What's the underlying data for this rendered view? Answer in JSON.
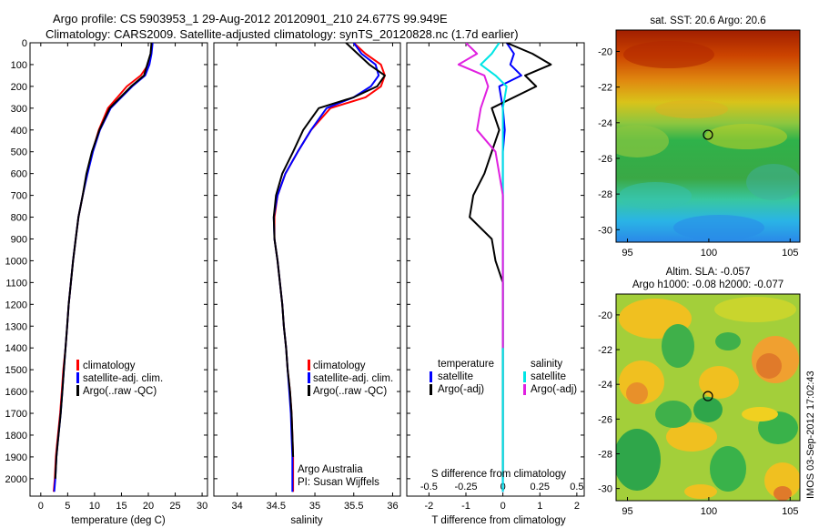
{
  "title_line1": "Argo profile: CS 5903953_1 29-Aug-2012 20120901_210 24.677S 99.949E",
  "title_line2": "Climatology: CARS2009. Satellite-adjusted climatology: synTS_20120828.nc (1.7d earlier)",
  "side_stamp": "IMOS 03-Sep-2012 17:02:43",
  "colors": {
    "red": "#ff0000",
    "blue": "#0000ff",
    "black": "#000000",
    "cyan": "#00e5e5",
    "magenta": "#e020e0"
  },
  "chart_data": [
    {
      "type": "line",
      "panel": "temperature",
      "xlabel": "temperature (deg C)",
      "ylabel": "",
      "xlim": [
        -2,
        31
      ],
      "ylim": [
        2080,
        0
      ],
      "xticks": [
        "0",
        "5",
        "10",
        "15",
        "20",
        "25",
        "30"
      ],
      "yticks": [
        "0",
        "100",
        "200",
        "300",
        "400",
        "500",
        "600",
        "700",
        "800",
        "900",
        "1000",
        "1100",
        "1200",
        "1300",
        "1400",
        "1500",
        "1600",
        "1700",
        "1800",
        "1900",
        "2000"
      ],
      "legend": [
        "climatology",
        "satellite-adj. clim.",
        "Argo(..raw -QC)"
      ],
      "series": [
        {
          "name": "climatology",
          "color": "red",
          "x": [
            20.7,
            20.5,
            20.0,
            18.6,
            16.0,
            12.5,
            10.8,
            9.6,
            8.6,
            7.8,
            7.0,
            6.5,
            6.0,
            5.6,
            5.2,
            4.9,
            4.6,
            4.2,
            3.9,
            3.6,
            3.4,
            3.2,
            3.0,
            2.8,
            2.7,
            2.6,
            2.5,
            2.4
          ],
          "y": [
            0,
            50,
            100,
            150,
            200,
            300,
            400,
            500,
            600,
            700,
            800,
            900,
            1000,
            1100,
            1200,
            1300,
            1400,
            1500,
            1600,
            1700,
            1750,
            1800,
            1850,
            1900,
            1950,
            2000,
            2030,
            2060
          ]
        },
        {
          "name": "satellite-adj. clim.",
          "color": "blue",
          "x": [
            20.8,
            20.6,
            20.2,
            19.4,
            17.0,
            13.0,
            11.0,
            9.7,
            8.7,
            7.8,
            7.0,
            6.5,
            6.0,
            5.6,
            5.2,
            4.9,
            4.6,
            4.3,
            4.0,
            3.7,
            3.5,
            3.3,
            3.1,
            2.9,
            2.8,
            2.7,
            2.6,
            2.5
          ],
          "y": [
            0,
            50,
            100,
            150,
            200,
            300,
            400,
            500,
            600,
            700,
            800,
            900,
            1000,
            1100,
            1200,
            1300,
            1400,
            1500,
            1600,
            1700,
            1750,
            1800,
            1850,
            1900,
            1950,
            2000,
            2030,
            2060
          ]
        },
        {
          "name": "Argo(..raw -QC)",
          "color": "black",
          "x": [
            20.6,
            20.4,
            19.8,
            19.2,
            16.8,
            12.8,
            10.9,
            9.5,
            8.5,
            7.8,
            7.0,
            6.5,
            6.0,
            5.6,
            5.2,
            4.9,
            4.6,
            4.3,
            4.0,
            3.7,
            3.5,
            3.3,
            3.1,
            2.9,
            2.8,
            2.7
          ],
          "y": [
            0,
            50,
            100,
            150,
            200,
            300,
            400,
            500,
            600,
            700,
            800,
            900,
            1000,
            1100,
            1200,
            1300,
            1400,
            1500,
            1600,
            1700,
            1750,
            1800,
            1850,
            1900,
            1950,
            2000
          ]
        }
      ]
    },
    {
      "type": "line",
      "panel": "salinity",
      "xlabel": "salinity",
      "ylabel": "",
      "xlim": [
        33.7,
        36.1
      ],
      "ylim": [
        2080,
        0
      ],
      "xticks": [
        "34",
        "34.5",
        "35",
        "35.5",
        "36"
      ],
      "annotation": [
        "Argo Australia",
        "PI: Susan Wijffels"
      ],
      "legend": [
        "climatology",
        "satellite-adj. clim.",
        "Argo(..raw -QC)"
      ],
      "series": [
        {
          "name": "climatology",
          "color": "red",
          "x": [
            35.5,
            35.65,
            35.85,
            35.9,
            35.85,
            35.65,
            35.2,
            34.95,
            34.78,
            34.62,
            34.52,
            34.48,
            34.48,
            34.52,
            34.55,
            34.58,
            34.6,
            34.63,
            34.65,
            34.68,
            34.7,
            34.71,
            34.72,
            34.72
          ],
          "y": [
            0,
            50,
            100,
            150,
            200,
            250,
            300,
            400,
            500,
            600,
            700,
            800,
            900,
            1000,
            1100,
            1200,
            1300,
            1400,
            1500,
            1600,
            1700,
            1800,
            1900,
            2060
          ]
        },
        {
          "name": "satellite-adj. clim.",
          "color": "blue",
          "x": [
            35.5,
            35.6,
            35.78,
            35.82,
            35.72,
            35.5,
            35.15,
            34.95,
            34.78,
            34.62,
            34.52,
            34.47,
            34.48,
            34.52,
            34.55,
            34.58,
            34.6,
            34.63,
            34.65,
            34.67,
            34.69,
            34.7,
            34.71,
            34.71
          ],
          "y": [
            0,
            50,
            100,
            150,
            200,
            250,
            300,
            400,
            500,
            600,
            700,
            800,
            900,
            1000,
            1100,
            1200,
            1300,
            1400,
            1500,
            1600,
            1700,
            1800,
            1900,
            2060
          ]
        },
        {
          "name": "Argo(..raw -QC)",
          "color": "black",
          "x": [
            35.4,
            35.55,
            35.7,
            35.9,
            35.8,
            35.5,
            35.05,
            34.85,
            34.72,
            34.58,
            34.5,
            34.47,
            34.48,
            34.52,
            34.55,
            34.58,
            34.6,
            34.63,
            34.65,
            34.68,
            34.7,
            34.71,
            34.72
          ],
          "y": [
            0,
            50,
            100,
            150,
            200,
            250,
            300,
            400,
            500,
            600,
            700,
            800,
            900,
            1000,
            1100,
            1200,
            1300,
            1400,
            1500,
            1600,
            1700,
            1800,
            1900
          ]
        }
      ]
    },
    {
      "type": "line",
      "panel": "difference",
      "xlabel": "T difference from climatology",
      "xlabel_top": "S difference from climatology",
      "xlim": [
        -2.6,
        2.2
      ],
      "ylim": [
        2080,
        0
      ],
      "xticks_bottom": [
        "-2",
        "-1",
        "0",
        "1",
        "2"
      ],
      "xticks_top": [
        "-0.5",
        "-0.25",
        "0",
        "0.25",
        "0.5"
      ],
      "legend_title_left": "temperature",
      "legend_title_right": "salinity",
      "legend_left": [
        "satellite",
        "Argo(-adj)"
      ],
      "legend_right": [
        "satellite",
        "Argo(-adj)"
      ],
      "series": [
        {
          "name": "temperature satellite",
          "color": "blue",
          "x": [
            0.1,
            0.3,
            0.2,
            0.5,
            -0.1,
            0.0,
            0.05,
            0.0,
            0.0,
            0.0,
            0.0,
            0.0,
            0.0,
            0.0,
            0.0,
            0.0,
            0.0,
            0.0
          ],
          "y": [
            0,
            50,
            100,
            150,
            200,
            300,
            400,
            500,
            600,
            700,
            800,
            900,
            1000,
            1200,
            1400,
            1600,
            1800,
            2060
          ]
        },
        {
          "name": "temperature Argo(-adj)",
          "color": "black",
          "x": [
            0.1,
            0.8,
            1.3,
            0.6,
            0.9,
            -0.3,
            -0.1,
            -0.3,
            -0.5,
            -0.8,
            -0.9,
            -0.3,
            -0.2,
            0.0,
            0.0,
            0.0,
            0.0,
            0.0,
            0.0
          ],
          "y": [
            0,
            50,
            100,
            150,
            200,
            300,
            400,
            500,
            600,
            700,
            800,
            900,
            1000,
            1100,
            1200,
            1400,
            1600,
            1800,
            2000
          ]
        },
        {
          "name": "salinity satellite",
          "color": "cyan",
          "x": [
            -0.1,
            -0.3,
            -0.6,
            -0.2,
            0.1,
            0.0,
            0.0,
            0.0,
            0.0,
            0.0,
            0.0,
            0.0,
            0.0,
            0.0,
            0.0,
            0.0
          ],
          "y": [
            0,
            50,
            100,
            150,
            200,
            300,
            400,
            600,
            800,
            1000,
            1200,
            1400,
            1600,
            1800,
            1900,
            2060
          ]
        },
        {
          "name": "salinity Argo(-adj)",
          "color": "magenta",
          "x": [
            -1.0,
            -0.7,
            -1.2,
            -0.5,
            -0.4,
            -0.6,
            -0.7,
            -0.2,
            -0.1,
            0.0,
            0.0,
            0.0,
            0.0,
            0.0
          ],
          "y": [
            0,
            50,
            100,
            150,
            200,
            300,
            400,
            500,
            600,
            700,
            800,
            1000,
            1200,
            1400
          ]
        }
      ]
    },
    {
      "type": "heatmap",
      "panel": "sst-map",
      "title": "sat. SST: 20.6 Argo: 20.6",
      "xticks": [
        "95",
        "100",
        "105"
      ],
      "yticks": [
        "-20",
        "-22",
        "-24",
        "-26",
        "-28",
        "-30"
      ],
      "xlim": [
        94.3,
        105.6
      ],
      "ylim": [
        -30.7,
        -18.8
      ],
      "marker": {
        "lon": 99.949,
        "lat": -24.677
      }
    },
    {
      "type": "heatmap",
      "panel": "sla-map",
      "title_line1": "Altim. SLA: -0.057",
      "title_line2": "Argo h1000: -0.08 h2000: -0.077",
      "xticks": [
        "95",
        "100",
        "105"
      ],
      "yticks": [
        "-20",
        "-22",
        "-24",
        "-26",
        "-28",
        "-30"
      ],
      "xlim": [
        94.3,
        105.6
      ],
      "ylim": [
        -30.7,
        -18.8
      ],
      "marker": {
        "lon": 99.949,
        "lat": -24.677
      }
    }
  ]
}
